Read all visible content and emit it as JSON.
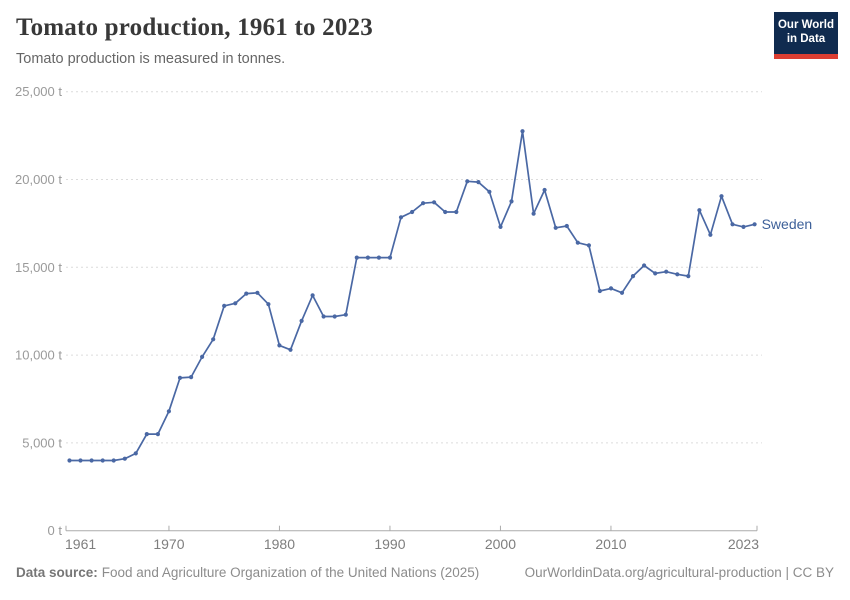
{
  "header": {
    "title": "Tomato production, 1961 to 2023",
    "subtitle": "Tomato production is measured in tonnes."
  },
  "logo": {
    "line1": "Our World",
    "line2": "in Data",
    "bg_color": "#102b4f",
    "accent_color": "#dc3e32"
  },
  "footer": {
    "source_label": "Data source:",
    "source_text": "Food and Agriculture Organization of the United Nations (2025)",
    "rights": "OurWorldinData.org/agricultural-production | CC BY"
  },
  "chart_data": {
    "type": "line",
    "title": "Tomato production, 1961 to 2023",
    "unit": "tonnes",
    "grid": "horizontal-dashed",
    "legend": "end-of-line-label",
    "ylim": [
      0,
      25000
    ],
    "yticks": [
      0,
      5000,
      10000,
      15000,
      20000,
      25000
    ],
    "ytick_labels": [
      "0 t",
      "5,000 t",
      "10,000 t",
      "15,000 t",
      "20,000 t",
      "25,000 t"
    ],
    "xticks": [
      1961,
      1970,
      1980,
      1990,
      2000,
      2010,
      2023
    ],
    "series": [
      {
        "name": "Sweden",
        "color": "#4a68a4",
        "label_color": "#3d6099",
        "x": [
          1961,
          1962,
          1963,
          1964,
          1965,
          1966,
          1967,
          1968,
          1969,
          1970,
          1971,
          1972,
          1973,
          1974,
          1975,
          1976,
          1977,
          1978,
          1979,
          1980,
          1981,
          1982,
          1983,
          1984,
          1985,
          1986,
          1987,
          1988,
          1989,
          1990,
          1991,
          1992,
          1993,
          1994,
          1995,
          1996,
          1997,
          1998,
          1999,
          2000,
          2001,
          2002,
          2003,
          2004,
          2005,
          2006,
          2007,
          2008,
          2009,
          2010,
          2011,
          2012,
          2013,
          2014,
          2015,
          2016,
          2017,
          2018,
          2019,
          2020,
          2021,
          2022,
          2023
        ],
        "values": [
          4000,
          4000,
          4000,
          4000,
          4000,
          4100,
          4400,
          5500,
          5500,
          6800,
          8700,
          8750,
          9900,
          10900,
          12800,
          12950,
          13500,
          13550,
          12900,
          10550,
          10300,
          11950,
          13400,
          12200,
          12200,
          12300,
          15550,
          15550,
          15550,
          15550,
          17850,
          18150,
          18650,
          18700,
          18150,
          18150,
          19900,
          19850,
          19300,
          17300,
          18750,
          22750,
          18050,
          19400,
          17250,
          17350,
          16400,
          16250,
          13650,
          13800,
          13550,
          14500,
          15100,
          14650,
          14750,
          14600,
          14500,
          18250,
          16850,
          19050,
          17450,
          17300,
          17450
        ]
      }
    ]
  }
}
